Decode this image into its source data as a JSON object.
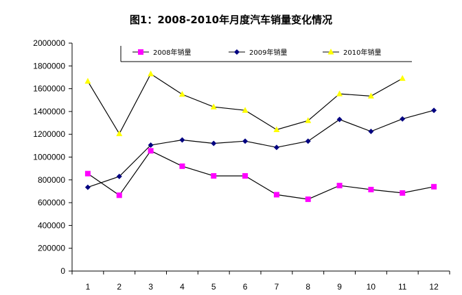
{
  "chart_data": {
    "type": "line",
    "title": "图1：2008-2010年月度汽车销量变化情况",
    "xlabel": "",
    "ylabel": "",
    "categories": [
      "1",
      "2",
      "3",
      "4",
      "5",
      "6",
      "7",
      "8",
      "9",
      "10",
      "11",
      "12"
    ],
    "ylim": [
      0,
      2000000
    ],
    "yticks": [
      "0",
      "200000",
      "400000",
      "600000",
      "800000",
      "1000000",
      "1200000",
      "1400000",
      "1600000",
      "1800000",
      "2000000"
    ],
    "grid": false,
    "legend_position": "top",
    "series": [
      {
        "name": "2008年销量",
        "color": "#ff00ff",
        "marker": "square",
        "values": [
          855000,
          665000,
          1055000,
          920000,
          835000,
          835000,
          670000,
          630000,
          750000,
          715000,
          685000,
          740000
        ]
      },
      {
        "name": "2009年销量",
        "color": "#000080",
        "marker": "diamond",
        "values": [
          735000,
          830000,
          1105000,
          1150000,
          1120000,
          1140000,
          1085000,
          1140000,
          1330000,
          1225000,
          1335000,
          1410000
        ]
      },
      {
        "name": "2010年销量",
        "color": "#ffff00",
        "marker": "triangle",
        "values": [
          1665000,
          1205000,
          1730000,
          1550000,
          1440000,
          1410000,
          1240000,
          1320000,
          1555000,
          1535000,
          1690000,
          null
        ]
      }
    ]
  }
}
